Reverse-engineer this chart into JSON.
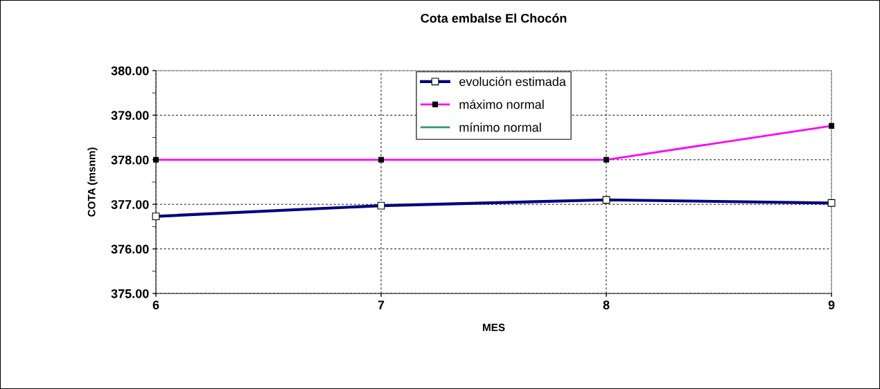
{
  "chart_data": {
    "type": "line",
    "title": "Cota embalse El Chocón",
    "xlabel": "MES",
    "ylabel": "COTA (msnm)",
    "x": [
      6,
      7,
      8,
      9
    ],
    "series": [
      {
        "name": "evolución estimada",
        "color": "#000080",
        "marker": "square",
        "values": [
          376.73,
          376.97,
          377.1,
          377.03
        ]
      },
      {
        "name": "máximo normal",
        "color": "#ff00ff",
        "marker": "square",
        "values": [
          378.0,
          378.0,
          378.0,
          378.76
        ]
      },
      {
        "name": "mínimo normal",
        "color": "#339966",
        "marker": "none",
        "values": [
          null,
          null,
          null,
          null
        ]
      }
    ],
    "xlim": [
      6,
      9
    ],
    "xticks": [
      6,
      7,
      8,
      9
    ],
    "ylim": [
      375,
      380
    ],
    "yticks": [
      {
        "value": 375,
        "label": "375.00"
      },
      {
        "value": 376,
        "label": "376.00"
      },
      {
        "value": 377,
        "label": "377.00"
      },
      {
        "value": 378,
        "label": "378.00"
      },
      {
        "value": 379,
        "label": "379.00"
      },
      {
        "value": 380,
        "label": "380.00"
      }
    ],
    "grid": true,
    "legend": "top",
    "line_style": "solid"
  }
}
